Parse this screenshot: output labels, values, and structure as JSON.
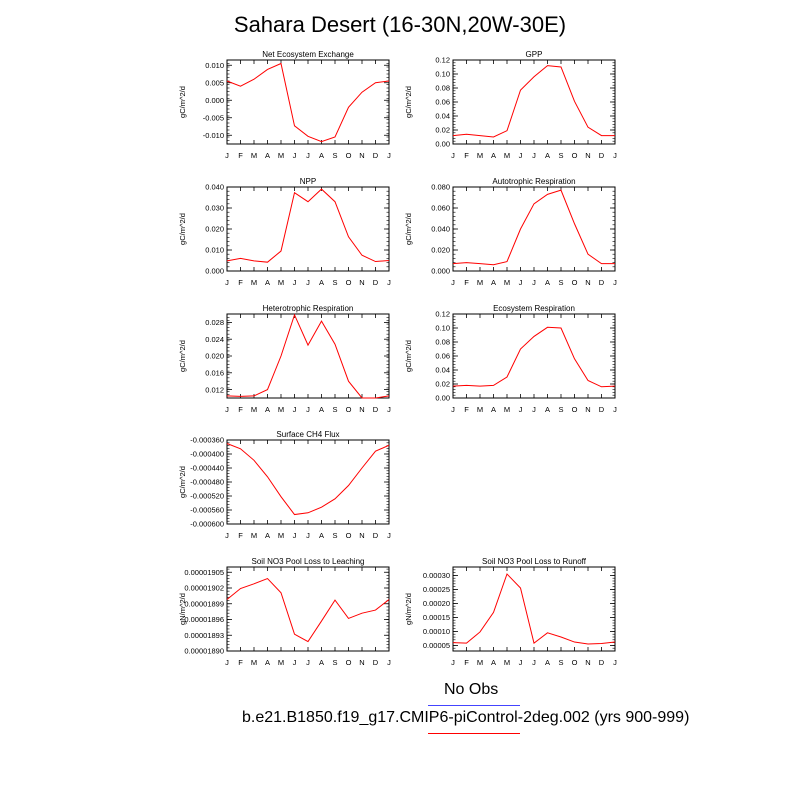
{
  "title": "Sahara Desert (16-30N,20W-30E)",
  "months": [
    "J",
    "F",
    "M",
    "A",
    "M",
    "J",
    "J",
    "A",
    "S",
    "O",
    "N",
    "D",
    "J"
  ],
  "legend": [
    {
      "label": "No Obs",
      "color": "#4444ff"
    },
    {
      "label": "b.e21.B1850.f19_g17.CMIP6-piControl-2deg.002 (yrs 900-999)",
      "color": "#ff0000"
    }
  ],
  "series_color": "#ff0000",
  "chart_data": [
    {
      "type": "line",
      "title": "Net Ecosystem Exchange",
      "ylabel": "gC/m^2/d",
      "ylim": [
        -0.0125,
        0.0115
      ],
      "yticks": [
        0.01,
        0.005,
        0.0,
        -0.005,
        -0.01
      ],
      "ytick_labels": [
        "0.010",
        "0.005",
        "0.000",
        "-0.005",
        "-0.010"
      ],
      "values": [
        0.0055,
        0.004,
        0.006,
        0.0088,
        0.0105,
        -0.0073,
        -0.0103,
        -0.0118,
        -0.0105,
        -0.002,
        0.0023,
        0.005,
        0.0055
      ]
    },
    {
      "type": "line",
      "title": "GPP",
      "ylabel": "gC/m^2/d",
      "ylim": [
        0,
        0.12
      ],
      "yticks": [
        0.0,
        0.02,
        0.04,
        0.06,
        0.08,
        0.1,
        0.12
      ],
      "ytick_labels": [
        "0.00",
        "0.02",
        "0.04",
        "0.06",
        "0.08",
        "0.10",
        "0.12"
      ],
      "values": [
        0.012,
        0.014,
        0.012,
        0.01,
        0.019,
        0.077,
        0.096,
        0.112,
        0.11,
        0.061,
        0.024,
        0.012,
        0.012
      ]
    },
    {
      "type": "line",
      "title": "NPP",
      "ylabel": "gC/m^2/d",
      "ylim": [
        0,
        0.04
      ],
      "yticks": [
        0.0,
        0.01,
        0.02,
        0.03,
        0.04
      ],
      "ytick_labels": [
        "0.000",
        "0.010",
        "0.020",
        "0.030",
        "0.040"
      ],
      "values": [
        0.0048,
        0.006,
        0.0048,
        0.0042,
        0.0095,
        0.0373,
        0.033,
        0.039,
        0.033,
        0.0163,
        0.0075,
        0.0045,
        0.005
      ]
    },
    {
      "type": "line",
      "title": "Autotrophic Respiration",
      "ylabel": "gC/m^2/d",
      "ylim": [
        0,
        0.08
      ],
      "yticks": [
        0.0,
        0.02,
        0.04,
        0.06,
        0.08
      ],
      "ytick_labels": [
        "0.000",
        "0.020",
        "0.040",
        "0.060",
        "0.080"
      ],
      "values": [
        0.007,
        0.008,
        0.007,
        0.006,
        0.009,
        0.04,
        0.064,
        0.073,
        0.077,
        0.045,
        0.016,
        0.007,
        0.007
      ]
    },
    {
      "type": "line",
      "title": "Heterotrophic Respiration",
      "ylabel": "gC/m^2/d",
      "ylim": [
        0.01,
        0.03
      ],
      "yticks": [
        0.012,
        0.016,
        0.02,
        0.024,
        0.028
      ],
      "ytick_labels": [
        "0.012",
        "0.016",
        "0.020",
        "0.024",
        "0.028"
      ],
      "values": [
        0.0105,
        0.0104,
        0.0105,
        0.012,
        0.02,
        0.0298,
        0.0226,
        0.0283,
        0.0228,
        0.014,
        0.01,
        0.01,
        0.0105
      ]
    },
    {
      "type": "line",
      "title": "Ecosystem Respiration",
      "ylabel": "gC/m^2/d",
      "ylim": [
        0,
        0.12
      ],
      "yticks": [
        0.0,
        0.02,
        0.04,
        0.06,
        0.08,
        0.1,
        0.12
      ],
      "ytick_labels": [
        "0.00",
        "0.02",
        "0.04",
        "0.06",
        "0.08",
        "0.10",
        "0.12"
      ],
      "values": [
        0.017,
        0.018,
        0.017,
        0.018,
        0.03,
        0.07,
        0.088,
        0.101,
        0.1,
        0.056,
        0.025,
        0.016,
        0.017
      ]
    },
    {
      "type": "line",
      "title": "Surface CH4 Flux",
      "ylabel": "gC/m^2/d",
      "ylim": [
        -0.0006,
        -0.00036
      ],
      "yticks": [
        -0.00036,
        -0.0004,
        -0.00044,
        -0.00048,
        -0.00052,
        -0.00056,
        -0.0006
      ],
      "ytick_labels": [
        "-0.000360",
        "-0.000400",
        "-0.000440",
        "-0.000480",
        "-0.000520",
        "-0.000560",
        "-0.000600"
      ],
      "values": [
        -0.00037,
        -0.000385,
        -0.000418,
        -0.000465,
        -0.000522,
        -0.000573,
        -0.000568,
        -0.000552,
        -0.000528,
        -0.00049,
        -0.00044,
        -0.000392,
        -0.000375
      ]
    },
    {
      "type": "line",
      "title": "Soil NO3 Pool Loss to Leaching",
      "ylabel": "gN/m^2/d",
      "ylim": [
        1.89e-05,
        1.906e-05
      ],
      "yticks": [
        1.905e-05,
        1.902e-05,
        1.899e-05,
        1.896e-05,
        1.893e-05,
        1.89e-05
      ],
      "ytick_labels": [
        "0.00001905",
        "0.00001902",
        "0.00001899",
        "0.00001896",
        "0.00001893",
        "0.00001890"
      ],
      "values": [
        1.8998e-05,
        1.9019e-05,
        1.9028e-05,
        1.9038e-05,
        1.9011e-05,
        1.8932e-05,
        1.8918e-05,
        1.8957e-05,
        1.8997e-05,
        1.8962e-05,
        1.8972e-05,
        1.8978e-05,
        1.8998e-05
      ]
    },
    {
      "type": "line",
      "title": "Soil NO3 Pool Loss to Runoff",
      "ylabel": "gN/m^2/d",
      "ylim": [
        3e-05,
        0.00033
      ],
      "yticks": [
        0.0003,
        0.00025,
        0.0002,
        0.00015,
        0.0001,
        5e-05
      ],
      "ytick_labels": [
        "0.00030",
        "0.00025",
        "0.00020",
        "0.00015",
        "0.00010",
        "0.00005"
      ],
      "values": [
        6e-05,
        5.8e-05,
        9.8e-05,
        0.000168,
        0.000305,
        0.000255,
        5.8e-05,
        9.5e-05,
        8e-05,
        6.2e-05,
        5.5e-05,
        5.7e-05,
        6.2e-05
      ]
    }
  ]
}
